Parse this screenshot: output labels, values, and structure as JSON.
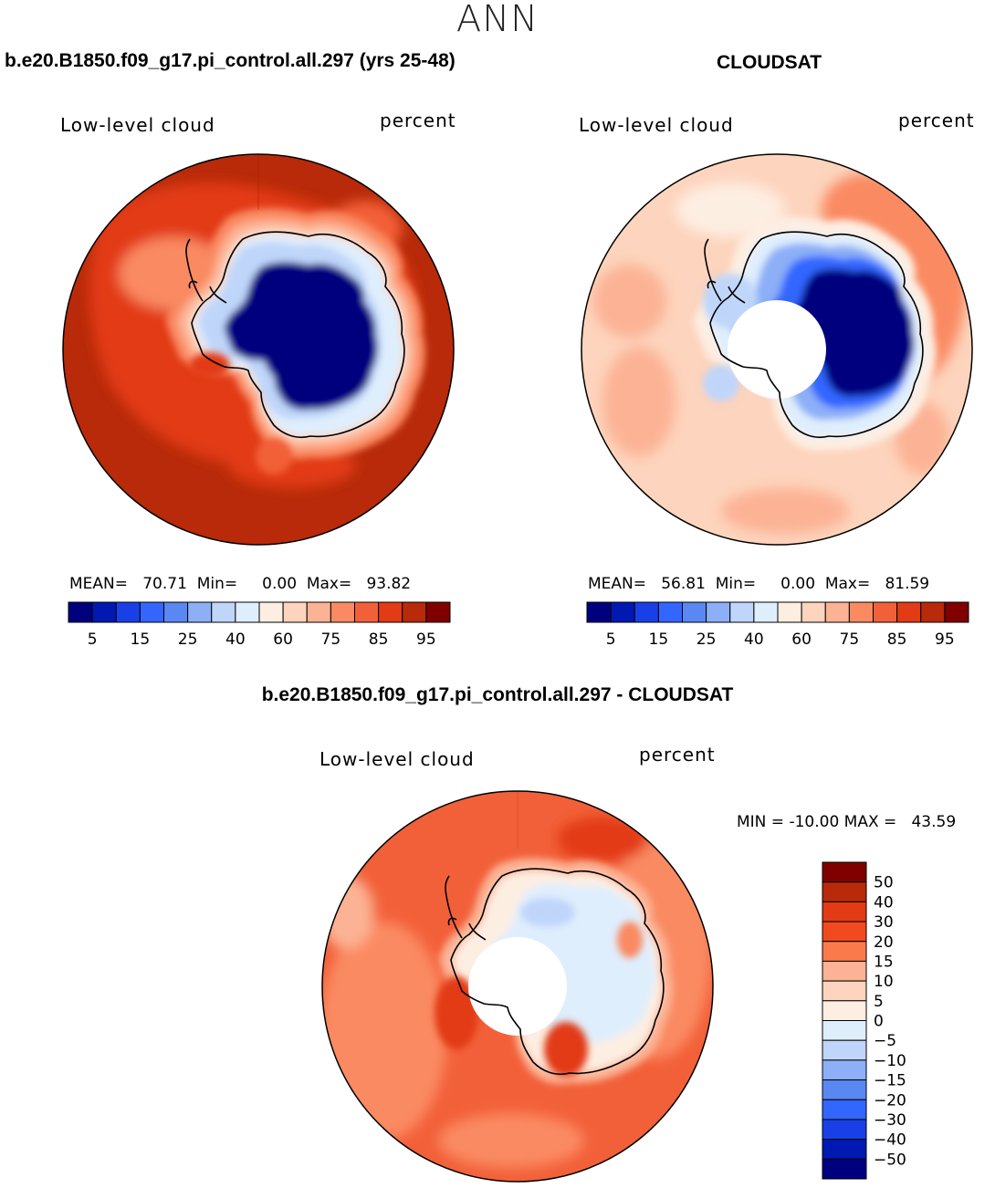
{
  "season": "ANN",
  "panels": [
    {
      "id": "model",
      "title": "b.e20.B1850.f09_g17.pi_control.all.297 (yrs 25-48)",
      "variable": "Low-level cloud",
      "units": "percent",
      "stats": {
        "mean_label": "MEAN=",
        "mean": "70.71",
        "min_label": "Min=",
        "min": "0.00",
        "max_label": "Max=",
        "max": "93.82"
      },
      "pole_hole": false
    },
    {
      "id": "obs",
      "title": "CLOUDSAT",
      "variable": "Low-level cloud",
      "units": "percent",
      "stats": {
        "mean_label": "MEAN=",
        "mean": "56.81",
        "min_label": "Min=",
        "min": "0.00",
        "max_label": "Max=",
        "max": "81.59"
      },
      "pole_hole": true
    },
    {
      "id": "diff",
      "title": "b.e20.B1850.f09_g17.pi_control.all.297 - CLOUDSAT",
      "variable": "Low-level cloud",
      "units": "percent",
      "stats": {
        "min_label": "MIN =",
        "min": "-10.00",
        "max_label": "MAX =",
        "max": "43.59"
      },
      "pole_hole": true
    }
  ],
  "colorbar_abs": {
    "colors": [
      "#00007f",
      "#0019b2",
      "#1940e6",
      "#3366ff",
      "#5a88f2",
      "#8caff7",
      "#bfd6fa",
      "#dfeefd",
      "#fdeee2",
      "#fdd4bd",
      "#fcb294",
      "#fa8a62",
      "#f26039",
      "#e23b16",
      "#b82a09",
      "#800000"
    ],
    "tick_labels": [
      "5",
      "15",
      "25",
      "40",
      "60",
      "75",
      "85",
      "95"
    ]
  },
  "colorbar_diff": {
    "colors": [
      "#800000",
      "#b82a09",
      "#e23b16",
      "#f24a20",
      "#fa7a4c",
      "#fcb294",
      "#fdd4bd",
      "#fdeee2",
      "#dfeefd",
      "#bfd6fa",
      "#8caff7",
      "#5a88f2",
      "#3366ff",
      "#1940e6",
      "#0019b2",
      "#00007f"
    ],
    "tick_labels": [
      "50",
      "40",
      "30",
      "20",
      "15",
      "10",
      "5",
      "0",
      "−5",
      "−10",
      "−15",
      "−20",
      "−30",
      "−40",
      "−50"
    ]
  }
}
